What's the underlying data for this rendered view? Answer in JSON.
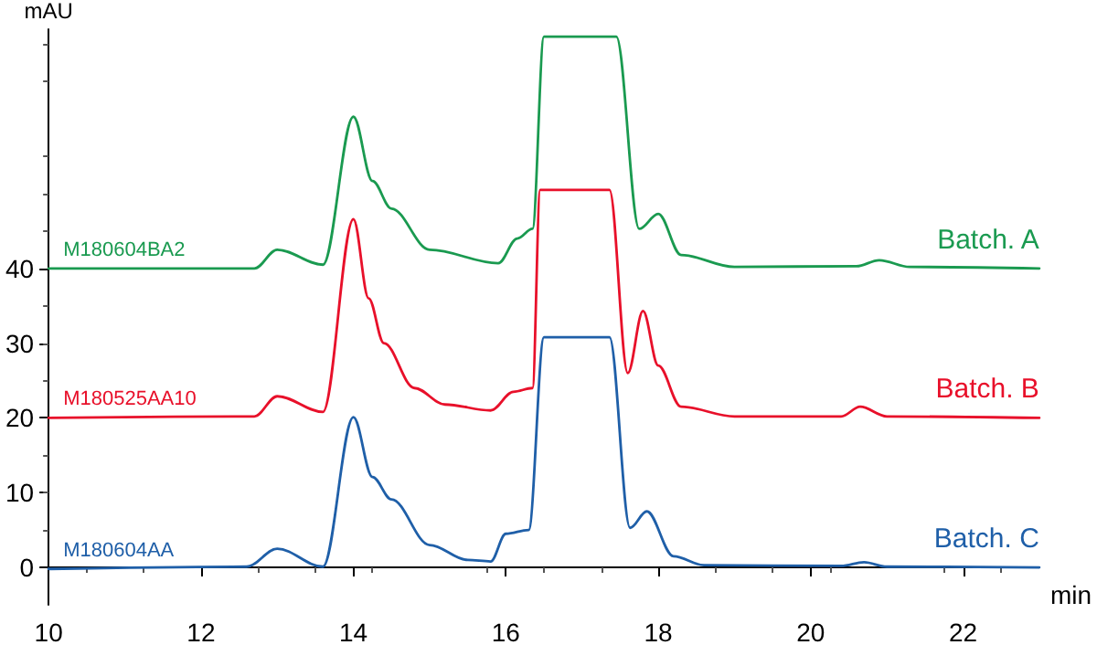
{
  "chart_data": {
    "type": "line",
    "xlabel": "min",
    "ylabel": "mAU",
    "xlim": [
      10,
      23
    ],
    "xticks": [
      10,
      12,
      14,
      16,
      18,
      20,
      22
    ],
    "ylim": [
      -5,
      72
    ],
    "yticks": [
      0,
      10,
      20,
      30,
      40
    ],
    "grid": false,
    "legend": false,
    "marker": "none",
    "line_style": "solid",
    "series": [
      {
        "name": "Batch. A",
        "color": "#1a9a50",
        "x": [
          10,
          12.7,
          13.0,
          13.6,
          14.0,
          14.25,
          14.5,
          15.0,
          15.9,
          16.15,
          16.35,
          16.5,
          17.45,
          17.75,
          18.0,
          18.3,
          19.0,
          20.6,
          20.9,
          21.3,
          23
        ],
        "values": [
          40,
          40,
          42.5,
          40.5,
          60.3,
          51.7,
          48,
          42.5,
          40.7,
          44,
          45.3,
          71,
          71,
          45.3,
          47.3,
          41.8,
          40.2,
          40.3,
          41.1,
          40.2,
          40
        ]
      },
      {
        "name": "Batch. B",
        "color": "#e8102a",
        "x": [
          10,
          12.7,
          13.0,
          13.6,
          14.0,
          14.2,
          14.4,
          14.8,
          15.2,
          15.8,
          16.1,
          16.35,
          16.45,
          17.36,
          17.6,
          17.8,
          18.0,
          18.3,
          19.0,
          20.4,
          20.65,
          21.0,
          23
        ],
        "values": [
          20,
          20.2,
          22.9,
          20.8,
          46.6,
          36,
          30,
          24,
          21.8,
          21,
          23.5,
          24,
          50.5,
          50.5,
          26,
          34.3,
          27,
          21.5,
          20.2,
          20.2,
          21.5,
          20.2,
          20
        ]
      },
      {
        "name": "Batch. C",
        "color": "#1f5fa8",
        "x": [
          10,
          12.6,
          13.0,
          13.6,
          14.0,
          14.25,
          14.5,
          15.0,
          15.5,
          15.8,
          16.0,
          16.3,
          16.5,
          17.36,
          17.63,
          17.85,
          18.2,
          18.6,
          20.4,
          20.7,
          21.0,
          23
        ],
        "values": [
          -0.2,
          0.1,
          2.5,
          0.1,
          20.1,
          12.1,
          9.1,
          3,
          1,
          0.8,
          4.5,
          5,
          30.8,
          30.8,
          5.3,
          7.5,
          1.5,
          0.3,
          0.2,
          0.7,
          0.1,
          0
        ]
      }
    ],
    "annotations": [
      "M180604BA2",
      "M180525AA10",
      "M180604AA"
    ]
  }
}
